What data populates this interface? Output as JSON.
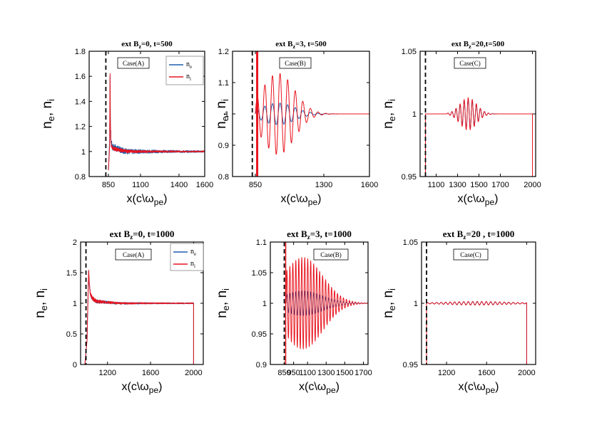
{
  "chart_data": [
    {
      "type": "line",
      "title": "ext B_z=0, t=500",
      "title_parts": {
        "pre": "ext B",
        "sub": "z",
        "post": "=0, t=500"
      },
      "xlabel": {
        "pre": "x(c\\ω",
        "sub": "pe",
        "post": ")"
      },
      "ylabel": {
        "a": "n",
        "a_sub": "e",
        "mid": ", n",
        "b_sub": "i"
      },
      "xlim": [
        700,
        1600
      ],
      "ylim": [
        0.8,
        1.8
      ],
      "xticks": [
        850,
        1100,
        1400,
        1600
      ],
      "yticks": [
        0.8,
        1,
        1.2,
        1.4,
        1.6,
        1.8
      ],
      "ytick_labels": [
        "0.8",
        "1",
        "1.2",
        "1.4",
        "1.6",
        "1.8"
      ],
      "case_label": "Case(A)",
      "dashed_x": 830,
      "legend": {
        "show": true,
        "ne": {
          "pre": "n",
          "sub": "e"
        },
        "ni": {
          "pre": "n",
          "sub": "i"
        }
      },
      "series": [
        {
          "name": "n_e",
          "color": "#1f5fae",
          "x": [
            850,
            860,
            863,
            865,
            870,
            880,
            900,
            950,
            1000,
            1050,
            1100,
            1200,
            1400,
            1600
          ],
          "values": [
            0.85,
            1.1,
            1.63,
            1.25,
            1.08,
            1.04,
            1.03,
            1.01,
            1.0,
            1.0,
            1.0,
            1.0,
            1.0,
            1.0
          ],
          "noise": 0.025
        },
        {
          "name": "n_i",
          "color": "#e8141e",
          "x": [
            850,
            860,
            863,
            865,
            870,
            880,
            900,
            950,
            1000,
            1050,
            1100,
            1200,
            1400,
            1600
          ],
          "values": [
            0.85,
            1.05,
            1.65,
            1.22,
            1.06,
            1.03,
            1.02,
            1.01,
            1.0,
            1.0,
            1.0,
            1.0,
            1.0,
            1.0
          ],
          "noise": 0.015
        }
      ]
    },
    {
      "type": "line",
      "title": "ext B_z=3, t=500",
      "title_parts": {
        "pre": "ext B",
        "sub": "z",
        "post": "=3, t=500"
      },
      "xlabel": {
        "pre": "x(c\\ω",
        "sub": "pe",
        "post": ")"
      },
      "ylabel": {
        "a": "n",
        "a_sub": "e",
        "mid": ", n",
        "b_sub": "i"
      },
      "xlim": [
        700,
        1600
      ],
      "ylim": [
        0.8,
        1.2
      ],
      "xticks": [
        850,
        1300,
        1600
      ],
      "yticks": [
        0.8,
        0.9,
        1,
        1.1,
        1.2
      ],
      "ytick_labels": [
        "0.8",
        "0.9",
        "1",
        "1.1",
        "1.2"
      ],
      "case_label": "Case(B)",
      "dashed_x": 830,
      "legend": {
        "show": false
      },
      "wave": {
        "start": 850,
        "end": 1600,
        "center": 1000,
        "width": 150,
        "period": 50,
        "ne_amp": 0.035,
        "ni_amp": 0.13
      },
      "series": [
        {
          "name": "n_e",
          "color": "#1f5fae",
          "x": [
            850,
            1600
          ],
          "values": [
            1,
            1
          ]
        },
        {
          "name": "n_i",
          "color": "#e8141e",
          "x": [
            850,
            1600
          ],
          "values": [
            1,
            1
          ]
        }
      ]
    },
    {
      "type": "line",
      "title": "ext B_z=20, t=500",
      "title_parts": {
        "pre": "ext B",
        "sub": "z",
        "post": "=20,t=500"
      },
      "xlabel": {
        "pre": "x(c\\ω",
        "sub": "pe",
        "post": ")"
      },
      "ylabel": {
        "a": "n",
        "a_sub": "e",
        "mid": ", n",
        "b_sub": "i"
      },
      "xlim": [
        950,
        2030
      ],
      "ylim": [
        0.95,
        1.05
      ],
      "xticks": [
        1100,
        1300,
        1500,
        1700,
        2000
      ],
      "yticks": [
        0.95,
        1,
        1.05
      ],
      "ytick_labels": [
        "0.95",
        "1",
        "1.05"
      ],
      "case_label": "Case(C)",
      "dashed_x": 1000,
      "legend": {
        "show": false
      },
      "wave": {
        "start": 1200,
        "end": 1600,
        "center": 1400,
        "width": 110,
        "period": 38,
        "ne_amp": 0.012,
        "ni_amp": 0.013
      },
      "series": [
        {
          "name": "n_e",
          "color": "#1f5fae",
          "x": [
            1000,
            2000
          ],
          "values": [
            1,
            1
          ]
        },
        {
          "name": "n_i",
          "color": "#e8141e",
          "x": [
            1000,
            2000
          ],
          "values": [
            1,
            1
          ]
        }
      ]
    },
    {
      "type": "line",
      "title": "ext B_z=0, t=1000",
      "title_parts": {
        "pre": "ext B",
        "sub": "z",
        "post": "=0, t=1000"
      },
      "xlabel": {
        "pre": "x(c\\ω",
        "sub": "pe",
        "post": ")"
      },
      "ylabel": {
        "a": "n",
        "a_sub": "e",
        "mid": ", n",
        "b_sub": "i"
      },
      "xlim": [
        950,
        2090
      ],
      "ylim": [
        0,
        2
      ],
      "xticks": [
        1200,
        1600,
        2000
      ],
      "yticks": [
        0,
        0.5,
        1,
        1.5,
        2
      ],
      "ytick_labels": [
        "0",
        "0.5",
        "1",
        "1.5",
        "2"
      ],
      "case_label": "Case(A)",
      "dashed_x": 1000,
      "legend": {
        "show": true,
        "ne": {
          "pre": "n",
          "sub": "e"
        },
        "ni": {
          "pre": "n",
          "sub": "i"
        }
      },
      "series": [
        {
          "name": "n_e",
          "color": "#1f5fae",
          "x": [
            990,
            1010,
            1020,
            1025,
            1030,
            1040,
            1060,
            1100,
            1300,
            1980,
            2000
          ],
          "values": [
            0,
            0.4,
            1.2,
            1.55,
            1.35,
            1.15,
            1.08,
            1.03,
            1.0,
            1.0,
            1.0
          ],
          "noise": 0.03
        },
        {
          "name": "n_i",
          "color": "#e8141e",
          "x": [
            990,
            1010,
            1020,
            1025,
            1030,
            1040,
            1060,
            1100,
            1300,
            1980,
            2000
          ],
          "values": [
            0,
            0.4,
            1.2,
            1.55,
            1.35,
            1.15,
            1.08,
            1.03,
            1.0,
            1.0,
            1.0
          ],
          "noise": 0.03
        }
      ]
    },
    {
      "type": "line",
      "title": "ext B_z=3, t=1000",
      "title_parts": {
        "pre": "ext B",
        "sub": "z",
        "post": "=3, t=1000"
      },
      "xlabel": {
        "pre": "x(c\\ω",
        "sub": "pe",
        "post": ")"
      },
      "ylabel": {
        "a": "n",
        "a_sub": "e",
        "mid": ", n",
        "b_sub": "i"
      },
      "xlim": [
        700,
        1750
      ],
      "ylim": [
        0.9,
        1.1
      ],
      "xticks": [
        850,
        950,
        1100,
        1300,
        1500,
        1700
      ],
      "xtick_labels": [
        "850",
        "950",
        "1100",
        "1300",
        "1500",
        "1700"
      ],
      "yticks": [
        0.9,
        0.95,
        1,
        1.05,
        1.1
      ],
      "ytick_labels": [
        "0.9",
        "0.95",
        "1",
        "1.05",
        "1.1"
      ],
      "case_label": "Case(B)",
      "dashed_x": 850,
      "legend": {
        "show": false
      },
      "wave": {
        "start": 870,
        "end": 1750,
        "center": 1050,
        "width": 300,
        "period": 32,
        "ne_amp": 0.02,
        "ni_amp": 0.075
      },
      "series": [
        {
          "name": "n_e",
          "color": "#1f5fae",
          "x": [
            850,
            1750
          ],
          "values": [
            1,
            1
          ]
        },
        {
          "name": "n_i",
          "color": "#e8141e",
          "x": [
            850,
            1750
          ],
          "values": [
            1,
            1
          ]
        }
      ]
    },
    {
      "type": "line",
      "title": "ext B_z=20 , t=1000",
      "title_parts": {
        "pre": "ext B",
        "sub": "z",
        "post": "=20 , t=1000"
      },
      "xlabel": {
        "pre": "x(c\\ω",
        "sub": "pe",
        "post": ")"
      },
      "ylabel": {
        "a": "n",
        "a_sub": "e",
        "mid": ", n",
        "b_sub": "i"
      },
      "xlim": [
        950,
        2090
      ],
      "ylim": [
        0.95,
        1.05
      ],
      "xticks": [
        1200,
        1600,
        2000
      ],
      "yticks": [
        0.95,
        1,
        1.05
      ],
      "ytick_labels": [
        "0.95",
        "1",
        "1.05"
      ],
      "case_label": "Case(C)",
      "dashed_x": 1000,
      "legend": {
        "show": false
      },
      "wave": {
        "start": 1000,
        "end": 2000,
        "center": 1500,
        "width": 450,
        "period": 45,
        "ne_amp": 0.0012,
        "ni_amp": 0.0015
      },
      "series": [
        {
          "name": "n_e",
          "color": "#1f5fae",
          "x": [
            1000,
            2000
          ],
          "values": [
            1,
            1
          ]
        },
        {
          "name": "n_i",
          "color": "#e8141e",
          "x": [
            1000,
            2000
          ],
          "values": [
            1,
            1
          ]
        }
      ]
    }
  ]
}
